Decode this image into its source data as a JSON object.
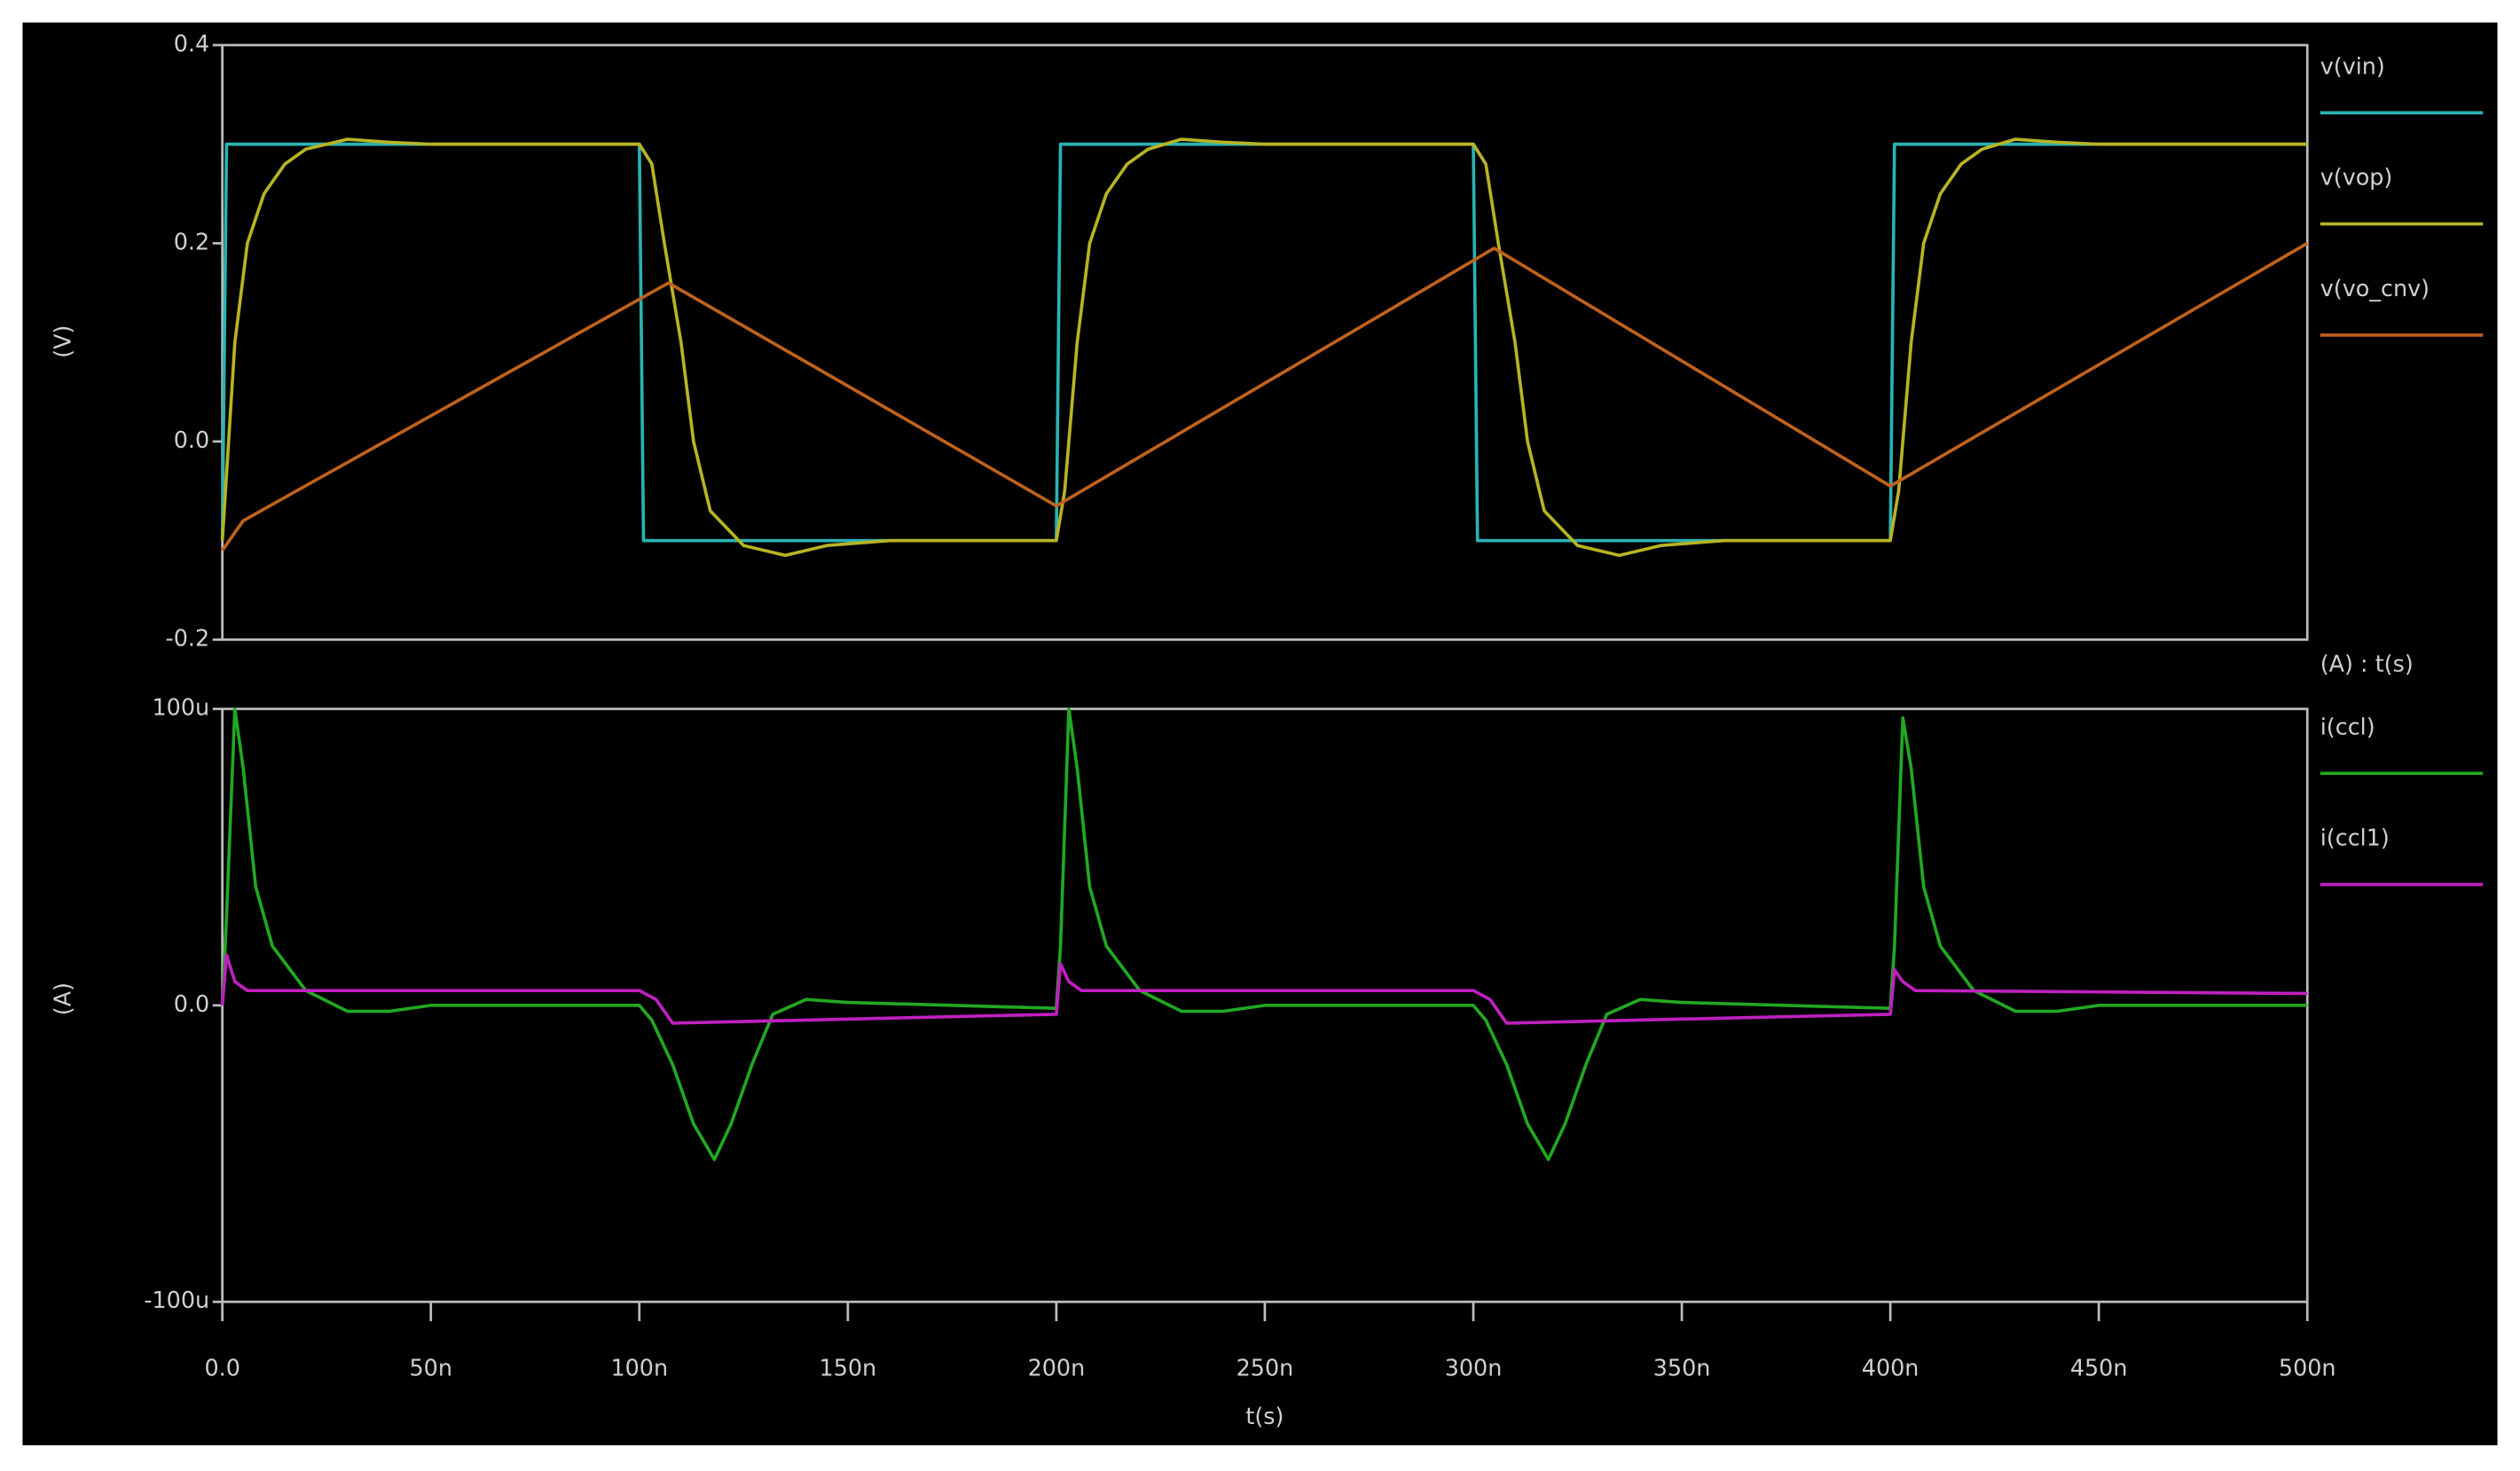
{
  "chart_data": [
    {
      "type": "line",
      "y_label": "(V)",
      "xlim": [
        0,
        5e-07
      ],
      "ylim": [
        -0.2,
        0.4
      ],
      "yticks": [
        0.4,
        0.2,
        {
          "value": 0,
          "label": "0.0"
        },
        -0.2
      ],
      "series": [
        {
          "name": "v(vin)",
          "color": "#2ab3b3",
          "x": [
            0,
            1e-09,
            1e-07,
            1.01e-07,
            2e-07,
            2.01e-07,
            3e-07,
            3.01e-07,
            4e-07,
            4.01e-07,
            5e-07
          ],
          "values": [
            -0.1,
            0.3,
            0.3,
            -0.1,
            -0.1,
            0.3,
            0.3,
            -0.1,
            -0.1,
            0.3,
            0.3
          ]
        },
        {
          "name": "v(vop)",
          "color": "#b8b424",
          "x": [
            0,
            3e-09,
            6e-09,
            1e-08,
            1.5e-08,
            2e-08,
            3e-08,
            4e-08,
            5e-08,
            1e-07,
            1.03e-07,
            1.06e-07,
            1.1e-07,
            1.13e-07,
            1.17e-07,
            1.25e-07,
            1.35e-07,
            1.45e-07,
            1.6e-07,
            2e-07,
            2.02e-07,
            2.05e-07,
            2.08e-07,
            2.12e-07,
            2.17e-07,
            2.22e-07,
            2.3e-07,
            2.4e-07,
            2.5e-07,
            3e-07,
            3.03e-07,
            3.06e-07,
            3.1e-07,
            3.13e-07,
            3.17e-07,
            3.25e-07,
            3.35e-07,
            3.45e-07,
            3.6e-07,
            4e-07,
            4.02e-07,
            4.05e-07,
            4.08e-07,
            4.12e-07,
            4.17e-07,
            4.22e-07,
            4.3e-07,
            4.4e-07,
            4.5e-07,
            5e-07
          ],
          "values": [
            -0.1,
            0.1,
            0.2,
            0.25,
            0.28,
            0.295,
            0.305,
            0.302,
            0.3,
            0.3,
            0.28,
            0.2,
            0.1,
            0,
            -0.07,
            -0.105,
            -0.115,
            -0.105,
            -0.1,
            -0.1,
            -0.05,
            0.1,
            0.2,
            0.25,
            0.28,
            0.295,
            0.305,
            0.302,
            0.3,
            0.3,
            0.28,
            0.2,
            0.1,
            0,
            -0.07,
            -0.105,
            -0.115,
            -0.105,
            -0.1,
            -0.1,
            -0.05,
            0.1,
            0.2,
            0.25,
            0.28,
            0.295,
            0.305,
            0.302,
            0.3,
            0.3
          ]
        },
        {
          "name": "v(vo_cnv)",
          "color": "#c0621c",
          "x": [
            0,
            5e-09,
            1.07e-07,
            2e-07,
            3.05e-07,
            4e-07,
            5e-07
          ],
          "values": [
            -0.11,
            -0.08,
            0.16,
            -0.065,
            0.195,
            -0.045,
            0.2
          ]
        }
      ]
    },
    {
      "type": "line",
      "y_label": "(A)",
      "x_label": "t(s)",
      "legend_title": "(A) : t(s)",
      "xlim": [
        0,
        5e-07
      ],
      "ylim": [
        -0.0001,
        0.0001
      ],
      "yticks": [
        {
          "value": 0.0001,
          "label": "100u"
        },
        {
          "value": 0,
          "label": "0.0"
        },
        {
          "value": -0.0001,
          "label": "-100u"
        }
      ],
      "xticks": [
        {
          "value": 0,
          "label": "0.0"
        },
        {
          "value": 5e-08,
          "label": "50n"
        },
        {
          "value": 1e-07,
          "label": "100n"
        },
        {
          "value": 1.5e-07,
          "label": "150n"
        },
        {
          "value": 2e-07,
          "label": "200n"
        },
        {
          "value": 2.5e-07,
          "label": "250n"
        },
        {
          "value": 3e-07,
          "label": "300n"
        },
        {
          "value": 3.5e-07,
          "label": "350n"
        },
        {
          "value": 4e-07,
          "label": "400n"
        },
        {
          "value": 4.5e-07,
          "label": "450n"
        },
        {
          "value": 5e-07,
          "label": "500n"
        }
      ],
      "series": [
        {
          "name": "i(ccl)",
          "color": "#22a822",
          "x": [
            0,
            1e-09,
            3e-09,
            5e-09,
            8e-09,
            1.2e-08,
            2e-08,
            3e-08,
            4e-08,
            5e-08,
            1e-07,
            1.03e-07,
            1.08e-07,
            1.13e-07,
            1.18e-07,
            1.22e-07,
            1.27e-07,
            1.32e-07,
            1.4e-07,
            1.5e-07,
            2e-07,
            2.01e-07,
            2.03e-07,
            2.05e-07,
            2.08e-07,
            2.12e-07,
            2.2e-07,
            2.3e-07,
            2.4e-07,
            2.5e-07,
            3e-07,
            3.03e-07,
            3.08e-07,
            3.13e-07,
            3.18e-07,
            3.22e-07,
            3.27e-07,
            3.32e-07,
            3.4e-07,
            3.5e-07,
            4e-07,
            4.01e-07,
            4.03e-07,
            4.05e-07,
            4.08e-07,
            4.12e-07,
            4.2e-07,
            4.3e-07,
            4.4e-07,
            4.5e-07,
            5e-07
          ],
          "values": [
            0,
            3e-05,
            0.0001,
            8e-05,
            4e-05,
            2e-05,
            5e-06,
            -2e-06,
            -2e-06,
            0,
            0,
            -5e-06,
            -2e-05,
            -4e-05,
            -5.2e-05,
            -4e-05,
            -2e-05,
            -3e-06,
            2e-06,
            1e-06,
            -1e-06,
            2e-05,
            0.0001,
            8e-05,
            4e-05,
            2e-05,
            5e-06,
            -2e-06,
            -2e-06,
            0,
            0,
            -5e-06,
            -2e-05,
            -4e-05,
            -5.2e-05,
            -4e-05,
            -2e-05,
            -3e-06,
            2e-06,
            1e-06,
            -1e-06,
            2e-05,
            9.7e-05,
            8e-05,
            4e-05,
            2e-05,
            5e-06,
            -2e-06,
            -2e-06,
            0,
            0
          ]
        },
        {
          "name": "i(ccl1)",
          "color": "#c020c0",
          "x": [
            0,
            1e-09,
            3e-09,
            6e-09,
            1e-07,
            1.04e-07,
            1.08e-07,
            2e-07,
            2.01e-07,
            2.03e-07,
            2.06e-07,
            3e-07,
            3.04e-07,
            3.08e-07,
            4e-07,
            4.01e-07,
            4.03e-07,
            4.06e-07,
            5e-07
          ],
          "values": [
            0,
            1.7e-05,
            8e-06,
            5e-06,
            5e-06,
            2e-06,
            -6e-06,
            -3e-06,
            1.4e-05,
            8e-06,
            5e-06,
            5e-06,
            2e-06,
            -6e-06,
            -3e-06,
            1.2e-05,
            8e-06,
            5e-06,
            4e-06
          ]
        }
      ]
    }
  ]
}
